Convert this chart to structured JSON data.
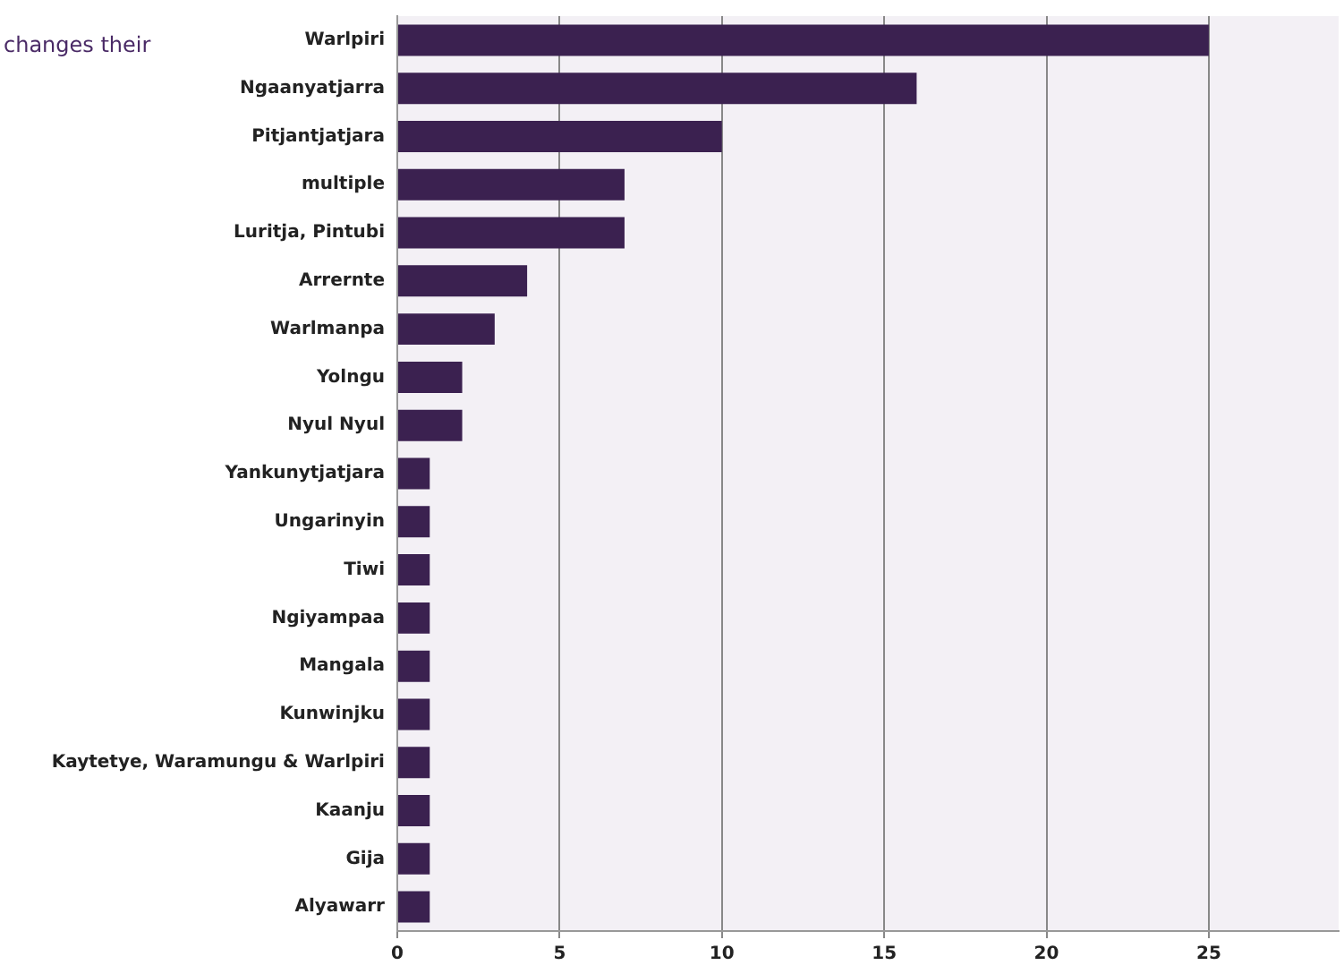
{
  "chart_data": {
    "type": "bar",
    "orientation": "horizontal",
    "categories": [
      "Warlpiri",
      "Ngaanyatjarra",
      "Pitjantjatjara",
      "multiple",
      "Luritja, Pintubi",
      "Arrernte",
      "Warlmanpa",
      "Yolngu",
      "Nyul Nyul",
      "Yankunytjatjara",
      "Ungarinyin",
      "Tiwi",
      "Ngiyampaa",
      "Mangala",
      "Kunwinjku",
      "Kaytetye, Waramungu & Warlpiri",
      "Kaanju",
      "Gija",
      "Alyawarr"
    ],
    "values": [
      25,
      16,
      10,
      7,
      7,
      4,
      3,
      2,
      2,
      1,
      1,
      1,
      1,
      1,
      1,
      1,
      1,
      1,
      1
    ],
    "color": "#3b2150",
    "xlim": [
      0,
      29
    ],
    "xticks": [
      0,
      5,
      10,
      15,
      20,
      25
    ],
    "grid": "x",
    "legend": false,
    "annotations": [
      "changes their"
    ]
  }
}
